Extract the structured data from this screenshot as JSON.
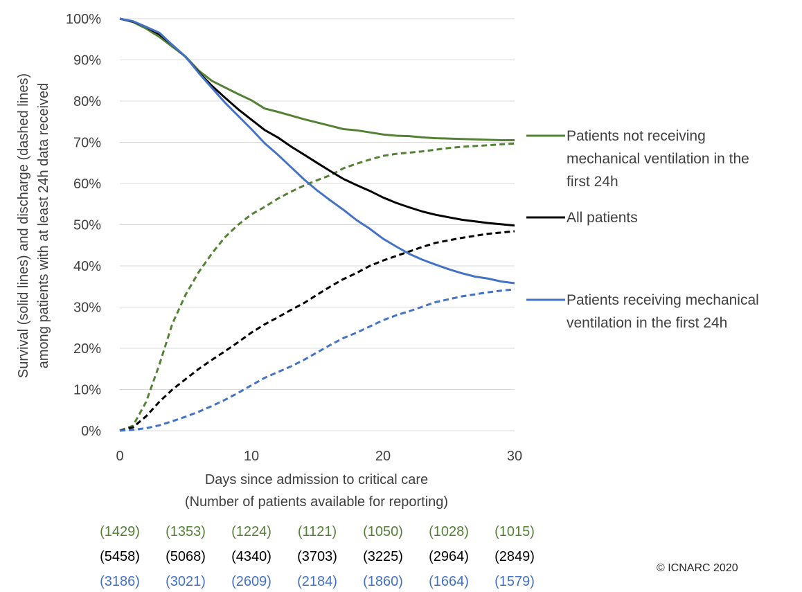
{
  "chart_data": {
    "type": "line",
    "xlabel": "Days since admission to critical care",
    "xlabel_sub": "(Number of patients available for reporting)",
    "ylabel_line1": "Survival (solid lines) and  discharge (dashed lines)",
    "ylabel_line2": "among patients with at least 24h data received",
    "xlim": [
      0,
      30
    ],
    "ylim": [
      0,
      100
    ],
    "x_ticks": [
      "0",
      "10",
      "20",
      "30"
    ],
    "y_ticks": [
      "0%",
      "10%",
      "20%",
      "30%",
      "40%",
      "50%",
      "60%",
      "70%",
      "80%",
      "90%",
      "100%"
    ],
    "grid": "horizontal",
    "series": [
      {
        "name": "Patients not receiving mechanical ventilation in the first 24h",
        "legend_lines": [
          "Patients not receiving",
          "mechanical ventilation in the",
          "first 24h"
        ],
        "color": "#548235",
        "survival": [
          [
            0,
            100
          ],
          [
            1,
            99.2
          ],
          [
            2,
            97.6
          ],
          [
            3,
            95.6
          ],
          [
            4,
            93.2
          ],
          [
            5,
            90.8
          ],
          [
            6,
            87.4
          ],
          [
            7,
            84.9
          ],
          [
            8,
            83.3
          ],
          [
            9,
            81.7
          ],
          [
            10,
            80.2
          ],
          [
            11,
            78.2
          ],
          [
            12,
            77.4
          ],
          [
            13,
            76.5
          ],
          [
            14,
            75.6
          ],
          [
            15,
            74.8
          ],
          [
            16,
            74.0
          ],
          [
            17,
            73.2
          ],
          [
            18,
            72.9
          ],
          [
            19,
            72.4
          ],
          [
            20,
            71.9
          ],
          [
            21,
            71.6
          ],
          [
            22,
            71.5
          ],
          [
            23,
            71.2
          ],
          [
            24,
            71.0
          ],
          [
            25,
            70.9
          ],
          [
            26,
            70.8
          ],
          [
            27,
            70.7
          ],
          [
            28,
            70.6
          ],
          [
            29,
            70.5
          ],
          [
            30,
            70.5
          ]
        ],
        "discharge": [
          [
            0,
            0
          ],
          [
            1,
            1.2
          ],
          [
            2,
            7
          ],
          [
            3,
            16
          ],
          [
            4,
            26
          ],
          [
            5,
            33
          ],
          [
            6,
            38.5
          ],
          [
            7,
            43
          ],
          [
            8,
            47
          ],
          [
            9,
            50
          ],
          [
            10,
            52.5
          ],
          [
            11,
            54.3
          ],
          [
            12,
            56.3
          ],
          [
            13,
            58
          ],
          [
            14,
            59.5
          ],
          [
            15,
            60.8
          ],
          [
            16,
            62
          ],
          [
            17,
            63.7
          ],
          [
            18,
            64.8
          ],
          [
            19,
            65.8
          ],
          [
            20,
            66.7
          ],
          [
            21,
            67.2
          ],
          [
            22,
            67.5
          ],
          [
            23,
            67.8
          ],
          [
            24,
            68.2
          ],
          [
            25,
            68.6
          ],
          [
            26,
            68.9
          ],
          [
            27,
            69.1
          ],
          [
            28,
            69.3
          ],
          [
            29,
            69.5
          ],
          [
            30,
            69.7
          ]
        ],
        "counts": [
          "(1429)",
          "(1353)",
          "(1224)",
          "(1121)",
          "(1050)",
          "(1028)",
          "(1015)"
        ]
      },
      {
        "name": "All patients",
        "legend_lines": [
          "All patients"
        ],
        "color": "#000000",
        "survival": [
          [
            0,
            100
          ],
          [
            1,
            99.3
          ],
          [
            2,
            98.0
          ],
          [
            3,
            96.2
          ],
          [
            4,
            93.6
          ],
          [
            5,
            90.7
          ],
          [
            6,
            87.0
          ],
          [
            7,
            83.7
          ],
          [
            8,
            80.8
          ],
          [
            9,
            78.0
          ],
          [
            10,
            75.5
          ],
          [
            11,
            73.0
          ],
          [
            12,
            71.2
          ],
          [
            13,
            69.0
          ],
          [
            14,
            67.0
          ],
          [
            15,
            65.0
          ],
          [
            16,
            63.0
          ],
          [
            17,
            61.1
          ],
          [
            18,
            59.6
          ],
          [
            19,
            58.2
          ],
          [
            20,
            56.6
          ],
          [
            21,
            55.3
          ],
          [
            22,
            54.2
          ],
          [
            23,
            53.2
          ],
          [
            24,
            52.4
          ],
          [
            25,
            51.8
          ],
          [
            26,
            51.2
          ],
          [
            27,
            50.8
          ],
          [
            28,
            50.4
          ],
          [
            29,
            50.1
          ],
          [
            30,
            49.8
          ]
        ],
        "discharge": [
          [
            0,
            0
          ],
          [
            1,
            0.8
          ],
          [
            2,
            3.5
          ],
          [
            3,
            7
          ],
          [
            4,
            10
          ],
          [
            5,
            12.5
          ],
          [
            6,
            15
          ],
          [
            7,
            17.2
          ],
          [
            8,
            19.3
          ],
          [
            9,
            21.5
          ],
          [
            10,
            23.8
          ],
          [
            11,
            25.8
          ],
          [
            12,
            27.5
          ],
          [
            13,
            29.3
          ],
          [
            14,
            31
          ],
          [
            15,
            33
          ],
          [
            16,
            35
          ],
          [
            17,
            36.8
          ],
          [
            18,
            38.3
          ],
          [
            19,
            40
          ],
          [
            20,
            41.3
          ],
          [
            21,
            42.4
          ],
          [
            22,
            43.5
          ],
          [
            23,
            44.6
          ],
          [
            24,
            45.6
          ],
          [
            25,
            46.2
          ],
          [
            26,
            46.8
          ],
          [
            27,
            47.3
          ],
          [
            28,
            47.8
          ],
          [
            29,
            48.1
          ],
          [
            30,
            48.4
          ]
        ],
        "counts": [
          "(5458)",
          "(5068)",
          "(4340)",
          "(3703)",
          "(3225)",
          "(2964)",
          "(2849)"
        ]
      },
      {
        "name": "Patients receiving mechanical ventilation in the first 24h",
        "legend_lines": [
          "Patients receiving mechanical",
          "ventilation in the first 24h"
        ],
        "color": "#4472C4",
        "survival": [
          [
            0,
            100
          ],
          [
            1,
            99.4
          ],
          [
            2,
            98.0
          ],
          [
            3,
            96.6
          ],
          [
            4,
            93.6
          ],
          [
            5,
            90.8
          ],
          [
            6,
            86.8
          ],
          [
            7,
            83.2
          ],
          [
            8,
            79.6
          ],
          [
            9,
            76.4
          ],
          [
            10,
            73.2
          ],
          [
            11,
            69.8
          ],
          [
            12,
            67.0
          ],
          [
            13,
            64.0
          ],
          [
            14,
            61.0
          ],
          [
            15,
            58.3
          ],
          [
            16,
            55.9
          ],
          [
            17,
            53.6
          ],
          [
            18,
            51.1
          ],
          [
            19,
            49.0
          ],
          [
            20,
            46.6
          ],
          [
            21,
            44.7
          ],
          [
            22,
            42.9
          ],
          [
            23,
            41.5
          ],
          [
            24,
            40.3
          ],
          [
            25,
            39.2
          ],
          [
            26,
            38.2
          ],
          [
            27,
            37.4
          ],
          [
            28,
            36.9
          ],
          [
            29,
            36.2
          ],
          [
            30,
            35.8
          ]
        ],
        "discharge": [
          [
            0,
            0
          ],
          [
            1,
            0.2
          ],
          [
            2,
            0.6
          ],
          [
            3,
            1.3
          ],
          [
            4,
            2.3
          ],
          [
            5,
            3.4
          ],
          [
            6,
            4.6
          ],
          [
            7,
            6
          ],
          [
            8,
            7.5
          ],
          [
            9,
            9.2
          ],
          [
            10,
            11
          ],
          [
            11,
            12.8
          ],
          [
            12,
            14.2
          ],
          [
            13,
            15.6
          ],
          [
            14,
            17.2
          ],
          [
            15,
            19
          ],
          [
            16,
            20.8
          ],
          [
            17,
            22.5
          ],
          [
            18,
            23.8
          ],
          [
            19,
            25.3
          ],
          [
            20,
            26.8
          ],
          [
            21,
            28
          ],
          [
            22,
            29
          ],
          [
            23,
            30.1
          ],
          [
            24,
            31.2
          ],
          [
            25,
            31.9
          ],
          [
            26,
            32.6
          ],
          [
            27,
            33.1
          ],
          [
            28,
            33.6
          ],
          [
            29,
            34
          ],
          [
            30,
            34.3
          ]
        ],
        "counts": [
          "(3186)",
          "(3021)",
          "(2609)",
          "(2184)",
          "(1860)",
          "(1664)",
          "(1579)"
        ]
      }
    ]
  },
  "copyright": "© ICNARC 2020"
}
